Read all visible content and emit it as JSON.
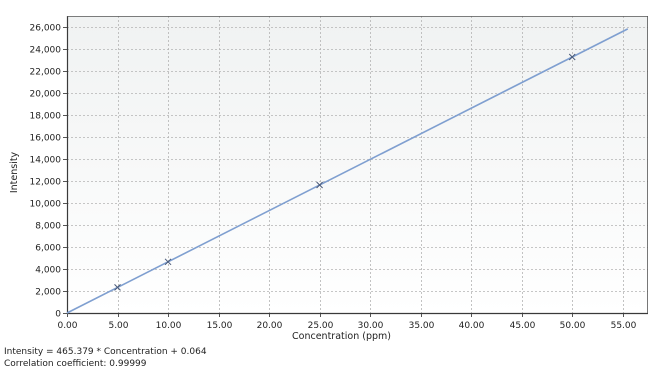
{
  "chart_data": {
    "type": "line",
    "xlabel": "Concentration (ppm)",
    "ylabel": "Intensity",
    "xlim": [
      0,
      57.5
    ],
    "ylim": [
      0,
      27000
    ],
    "x_ticks": [
      "0.00",
      "5.00",
      "10.00",
      "15.00",
      "20.00",
      "25.00",
      "30.00",
      "35.00",
      "40.00",
      "45.00",
      "50.00",
      "55.00"
    ],
    "y_ticks": [
      "0",
      "2,000",
      "4,000",
      "6,000",
      "8,000",
      "10,000",
      "12,000",
      "14,000",
      "16,000",
      "18,000",
      "20,000",
      "22,000",
      "24,000",
      "26,000"
    ],
    "grid": true,
    "fit_line": {
      "x": [
        0,
        55.5
      ],
      "slope": 465.379,
      "intercept": 0.064
    },
    "points": [
      {
        "x": 5.0,
        "y": 2327
      },
      {
        "x": 10.0,
        "y": 4654
      },
      {
        "x": 25.0,
        "y": 11634
      },
      {
        "x": 50.0,
        "y": 23269
      }
    ],
    "colors": {
      "line": "#7f9fd0",
      "marker": "#4a5a78",
      "grid": "#b4b4b4",
      "plot_bg_top": "#f0f2f2",
      "plot_bg_bottom": "#ffffff"
    }
  },
  "footer": {
    "equation": "Intensity = 465.379 * Concentration + 0.064",
    "correlation": "Correlation coefficient: 0.99999"
  }
}
